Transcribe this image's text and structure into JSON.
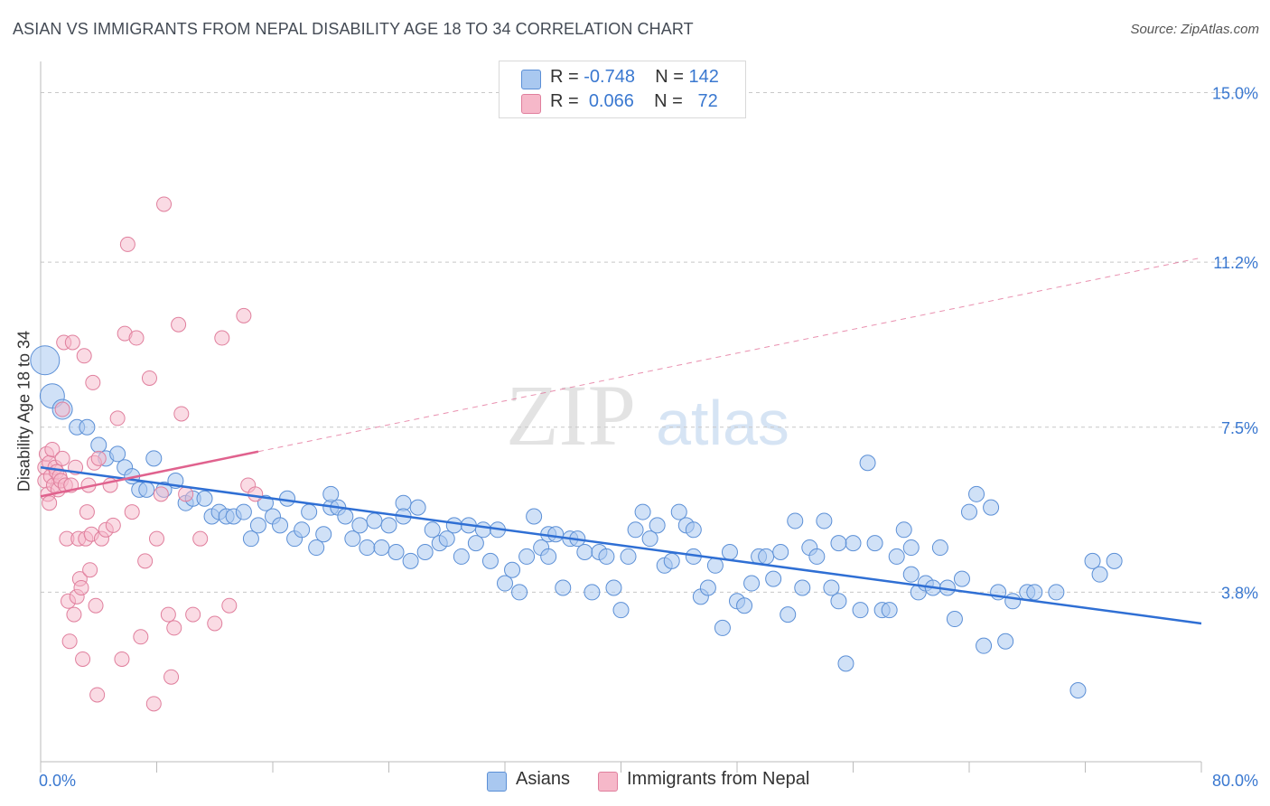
{
  "title": "ASIAN VS IMMIGRANTS FROM NEPAL DISABILITY AGE 18 TO 34 CORRELATION CHART",
  "source": "Source: ZipAtlas.com",
  "legend_top": [
    {
      "r_label": "R =",
      "r_value": "-0.748",
      "n_label": "N =",
      "n_value": "142"
    },
    {
      "r_label": "R =",
      "r_value": "0.066",
      "n_label": "N =",
      "n_value": "72"
    }
  ],
  "legend_bottom": [
    "Asians",
    "Immigrants from Nepal"
  ],
  "colors": {
    "asians_fill": "#a9c8f0",
    "asians_stroke": "#5b8fd6",
    "asians_line": "#2f6fd4",
    "nepal_fill": "#f6b8c9",
    "nepal_stroke": "#e07f9d",
    "nepal_line": "#e0628e",
    "tick_label": "#3a78d0",
    "grid": "#c8c8c8"
  },
  "watermark": {
    "zip": "ZIP",
    "atlas": "atlas"
  },
  "chart_data": {
    "type": "scatter",
    "title": "ASIAN VS IMMIGRANTS FROM NEPAL DISABILITY AGE 18 TO 34 CORRELATION CHART",
    "xlabel": "",
    "ylabel": "Disability Age 18 to 34",
    "xlim": [
      0,
      80
    ],
    "ylim": [
      0,
      15.7
    ],
    "x_tick_labels": [
      "0.0%",
      "80.0%"
    ],
    "y_ticks": [
      3.8,
      7.5,
      11.2,
      15.0
    ],
    "y_tick_labels": [
      "3.8%",
      "7.5%",
      "11.2%",
      "15.0%"
    ],
    "grid": "horizontal dashed",
    "series": [
      {
        "name": "Asians",
        "trend": {
          "x": [
            0,
            80
          ],
          "y": [
            6.6,
            3.1
          ],
          "style": "solid"
        },
        "points": [
          [
            0.3,
            9.0
          ],
          [
            0.8,
            8.2
          ],
          [
            1.5,
            7.9
          ],
          [
            2.5,
            7.5
          ],
          [
            3.2,
            7.5
          ],
          [
            4.0,
            7.1
          ],
          [
            4.5,
            6.8
          ],
          [
            5.3,
            6.9
          ],
          [
            5.8,
            6.6
          ],
          [
            6.3,
            6.4
          ],
          [
            6.8,
            6.1
          ],
          [
            7.3,
            6.1
          ],
          [
            7.8,
            6.8
          ],
          [
            8.5,
            6.1
          ],
          [
            9.3,
            6.3
          ],
          [
            10.0,
            5.8
          ],
          [
            10.5,
            5.9
          ],
          [
            11.3,
            5.9
          ],
          [
            11.8,
            5.5
          ],
          [
            12.3,
            5.6
          ],
          [
            12.8,
            5.5
          ],
          [
            13.3,
            5.5
          ],
          [
            14.0,
            5.6
          ],
          [
            14.5,
            5.0
          ],
          [
            15.0,
            5.3
          ],
          [
            15.5,
            5.8
          ],
          [
            16.0,
            5.5
          ],
          [
            16.5,
            5.3
          ],
          [
            17.0,
            5.9
          ],
          [
            17.5,
            5.0
          ],
          [
            18.0,
            5.2
          ],
          [
            18.5,
            5.6
          ],
          [
            19.0,
            4.8
          ],
          [
            19.5,
            5.1
          ],
          [
            20.0,
            5.7
          ],
          [
            20.5,
            5.7
          ],
          [
            21.0,
            5.5
          ],
          [
            21.5,
            5.0
          ],
          [
            22.0,
            5.3
          ],
          [
            22.5,
            4.8
          ],
          [
            23.0,
            5.4
          ],
          [
            23.5,
            4.8
          ],
          [
            24.0,
            5.3
          ],
          [
            24.5,
            4.7
          ],
          [
            25.0,
            5.8
          ],
          [
            25.5,
            4.5
          ],
          [
            26.0,
            5.7
          ],
          [
            26.5,
            4.7
          ],
          [
            27.0,
            5.2
          ],
          [
            27.5,
            4.9
          ],
          [
            28.0,
            5.0
          ],
          [
            28.5,
            5.3
          ],
          [
            29.0,
            4.6
          ],
          [
            29.5,
            5.3
          ],
          [
            30.0,
            4.9
          ],
          [
            30.5,
            5.2
          ],
          [
            31.0,
            4.5
          ],
          [
            31.5,
            5.2
          ],
          [
            32.0,
            4.0
          ],
          [
            32.5,
            4.3
          ],
          [
            33.0,
            3.8
          ],
          [
            33.5,
            4.6
          ],
          [
            34.0,
            5.5
          ],
          [
            34.5,
            4.8
          ],
          [
            35.0,
            5.1
          ],
          [
            35.5,
            5.1
          ],
          [
            36.0,
            3.9
          ],
          [
            36.5,
            5.0
          ],
          [
            37.0,
            5.0
          ],
          [
            37.5,
            4.7
          ],
          [
            38.0,
            3.8
          ],
          [
            38.5,
            4.7
          ],
          [
            39.0,
            4.6
          ],
          [
            39.5,
            3.9
          ],
          [
            40.0,
            3.4
          ],
          [
            40.5,
            4.6
          ],
          [
            41.0,
            5.2
          ],
          [
            41.5,
            5.6
          ],
          [
            42.0,
            5.0
          ],
          [
            42.5,
            5.3
          ],
          [
            43.0,
            4.4
          ],
          [
            43.5,
            4.5
          ],
          [
            44.0,
            5.6
          ],
          [
            44.5,
            5.3
          ],
          [
            45.0,
            4.6
          ],
          [
            45.5,
            3.7
          ],
          [
            46.0,
            3.9
          ],
          [
            46.5,
            4.4
          ],
          [
            47.0,
            3.0
          ],
          [
            47.5,
            4.7
          ],
          [
            48.0,
            3.6
          ],
          [
            48.5,
            3.5
          ],
          [
            49.0,
            4.0
          ],
          [
            49.5,
            4.6
          ],
          [
            50.0,
            4.6
          ],
          [
            50.5,
            4.1
          ],
          [
            51.0,
            4.7
          ],
          [
            51.5,
            3.3
          ],
          [
            52.0,
            5.4
          ],
          [
            52.5,
            3.9
          ],
          [
            53.0,
            4.8
          ],
          [
            53.5,
            4.6
          ],
          [
            54.0,
            5.4
          ],
          [
            54.5,
            3.9
          ],
          [
            55.0,
            3.6
          ],
          [
            55.5,
            2.2
          ],
          [
            56.0,
            4.9
          ],
          [
            56.5,
            3.4
          ],
          [
            57.0,
            6.7
          ],
          [
            57.5,
            4.9
          ],
          [
            58.0,
            3.4
          ],
          [
            58.5,
            3.4
          ],
          [
            59.0,
            4.6
          ],
          [
            59.5,
            5.2
          ],
          [
            60.0,
            4.8
          ],
          [
            60.5,
            3.8
          ],
          [
            61.0,
            4.0
          ],
          [
            61.5,
            3.9
          ],
          [
            62.0,
            4.8
          ],
          [
            62.5,
            3.9
          ],
          [
            63.0,
            3.2
          ],
          [
            63.5,
            4.1
          ],
          [
            64.0,
            5.6
          ],
          [
            64.5,
            6.0
          ],
          [
            65.0,
            2.6
          ],
          [
            65.5,
            5.7
          ],
          [
            66.0,
            3.8
          ],
          [
            66.5,
            2.7
          ],
          [
            67.0,
            3.6
          ],
          [
            68.0,
            3.8
          ],
          [
            68.5,
            3.8
          ],
          [
            70.0,
            3.8
          ],
          [
            71.5,
            1.6
          ],
          [
            72.5,
            4.5
          ],
          [
            73.0,
            4.2
          ],
          [
            74.0,
            4.5
          ],
          [
            60.0,
            4.2
          ],
          [
            20.0,
            6.0
          ],
          [
            45.0,
            5.2
          ],
          [
            35.0,
            4.6
          ],
          [
            25.0,
            5.5
          ],
          [
            55.0,
            4.9
          ]
        ]
      },
      {
        "name": "Immigrants from Nepal",
        "trend": {
          "x": [
            0,
            80
          ],
          "y": [
            5.95,
            11.3
          ],
          "solid_until_x": 15,
          "style": "solid then dashed"
        },
        "points": [
          [
            0.3,
            6.6
          ],
          [
            0.3,
            6.3
          ],
          [
            0.4,
            6.9
          ],
          [
            0.5,
            6.0
          ],
          [
            0.6,
            5.8
          ],
          [
            0.6,
            6.7
          ],
          [
            0.7,
            6.4
          ],
          [
            0.8,
            7.0
          ],
          [
            0.9,
            6.2
          ],
          [
            1.0,
            6.6
          ],
          [
            1.1,
            6.5
          ],
          [
            1.2,
            6.1
          ],
          [
            1.3,
            6.4
          ],
          [
            1.4,
            6.3
          ],
          [
            1.5,
            6.8
          ],
          [
            1.5,
            7.9
          ],
          [
            1.6,
            9.4
          ],
          [
            1.7,
            6.2
          ],
          [
            1.8,
            5.0
          ],
          [
            1.9,
            3.6
          ],
          [
            2.0,
            2.7
          ],
          [
            2.1,
            6.2
          ],
          [
            2.2,
            9.4
          ],
          [
            2.3,
            3.3
          ],
          [
            2.4,
            6.6
          ],
          [
            2.5,
            3.7
          ],
          [
            2.6,
            5.0
          ],
          [
            2.7,
            4.1
          ],
          [
            2.8,
            3.9
          ],
          [
            2.9,
            2.3
          ],
          [
            3.0,
            9.1
          ],
          [
            3.1,
            5.0
          ],
          [
            3.2,
            5.6
          ],
          [
            3.3,
            6.2
          ],
          [
            3.4,
            4.3
          ],
          [
            3.5,
            5.1
          ],
          [
            3.6,
            8.5
          ],
          [
            3.7,
            6.7
          ],
          [
            3.8,
            3.5
          ],
          [
            3.9,
            1.5
          ],
          [
            4.0,
            6.8
          ],
          [
            4.2,
            5.0
          ],
          [
            4.5,
            5.2
          ],
          [
            4.8,
            6.2
          ],
          [
            5.0,
            5.3
          ],
          [
            5.3,
            7.7
          ],
          [
            5.6,
            2.3
          ],
          [
            5.8,
            9.6
          ],
          [
            6.0,
            11.6
          ],
          [
            6.3,
            5.6
          ],
          [
            6.6,
            9.5
          ],
          [
            6.9,
            2.8
          ],
          [
            7.2,
            4.5
          ],
          [
            7.5,
            8.6
          ],
          [
            7.8,
            1.3
          ],
          [
            8.0,
            5.0
          ],
          [
            8.3,
            6.0
          ],
          [
            8.5,
            12.5
          ],
          [
            8.8,
            3.3
          ],
          [
            9.0,
            1.9
          ],
          [
            9.2,
            3.0
          ],
          [
            9.5,
            9.8
          ],
          [
            9.7,
            7.8
          ],
          [
            10.0,
            6.0
          ],
          [
            10.5,
            3.3
          ],
          [
            11.0,
            5.0
          ],
          [
            12.0,
            3.1
          ],
          [
            12.5,
            9.5
          ],
          [
            13.0,
            3.5
          ],
          [
            14.0,
            10.0
          ],
          [
            14.3,
            6.2
          ],
          [
            14.8,
            6.0
          ]
        ]
      }
    ]
  }
}
